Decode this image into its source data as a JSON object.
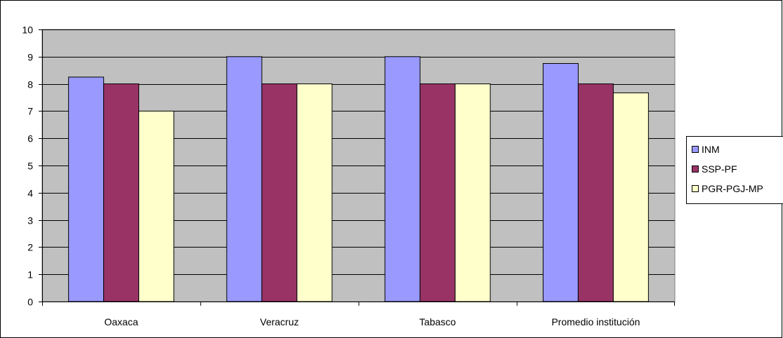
{
  "chart_data": {
    "type": "bar",
    "title": "",
    "xlabel": "",
    "ylabel": "",
    "categories": [
      "Oaxaca",
      "Veracruz",
      "Tabasco",
      "Promedio institución"
    ],
    "series": [
      {
        "name": "INM",
        "values": [
          8.25,
          9,
          9,
          8.75
        ],
        "color": "#9999ff"
      },
      {
        "name": "SSP-PF",
        "values": [
          8,
          8,
          8,
          8
        ],
        "color": "#993366"
      },
      {
        "name": "PGR-PGJ-MP",
        "values": [
          7,
          8,
          8,
          7.67
        ],
        "color": "#ffffcc"
      }
    ],
    "ylim": [
      0,
      10
    ],
    "yticks": [
      0,
      1,
      2,
      3,
      4,
      5,
      6,
      7,
      8,
      9,
      10
    ],
    "grid": true,
    "plot_background": "#c0c0c0",
    "legend_position": "right"
  }
}
